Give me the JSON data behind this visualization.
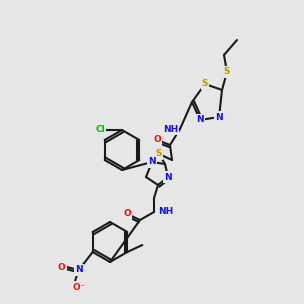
{
  "bg": "#e6e6e6",
  "C": "#1a1a1a",
  "N": "#1010ee",
  "O": "#ee1010",
  "S": "#b89a00",
  "Cl": "#00bb00",
  "lw": 1.5,
  "doff": 2.2
}
